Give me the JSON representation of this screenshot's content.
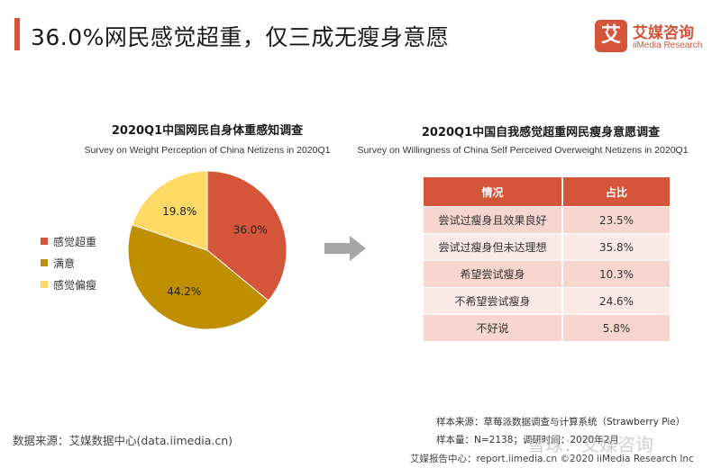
{
  "header": {
    "title": "36.0%网民感觉超重，仅三成无瘦身意愿"
  },
  "logo": {
    "mark": "艾",
    "name_cn": "艾媒咨询",
    "name_en": "iiMedia Research"
  },
  "chart_data": [
    {
      "type": "pie",
      "title": "2020Q1中国网民自身体重感知调查",
      "subtitle": "Survey on Weight Perception of China Netizens in 2020Q1",
      "slices": [
        {
          "label": "感觉超重",
          "value": 36.0,
          "display": "36.0%",
          "color": "#d4553a"
        },
        {
          "label": "满意",
          "value": 44.2,
          "display": "44.2%",
          "color": "#bf8f00"
        },
        {
          "label": "感觉偏瘦",
          "value": 19.8,
          "display": "19.8%",
          "color": "#ffd966"
        }
      ],
      "legend_position": "left"
    },
    {
      "type": "table",
      "title": "2020Q1中国自我感觉超重网民瘦身意愿调查",
      "subtitle": "Survey on Willingness of China Self Perceived Overweight Netizens in 2020Q1",
      "columns": [
        "情况",
        "占比"
      ],
      "rows": [
        [
          "尝试过瘦身且效果良好",
          "23.5%"
        ],
        [
          "尝试过瘦身但未达理想",
          "35.8%"
        ],
        [
          "希望尝试瘦身",
          "10.3%"
        ],
        [
          "不希望尝试瘦身",
          "24.6%"
        ],
        [
          "不好说",
          "5.8%"
        ]
      ]
    }
  ],
  "source": "数据来源：艾媒数据中心(data.iimedia.cn)",
  "notes": {
    "sample_source": "样本来源：草莓派数据调查与计算系统（Strawberry Pie）",
    "sample_size": "样本量：N=2138；调研时间：2020年2月"
  },
  "footer": "艾媒报告中心：report.iimedia.cn  ©2020  iiMedia Research  Inc",
  "watermark": "雪球：艾媒咨询"
}
